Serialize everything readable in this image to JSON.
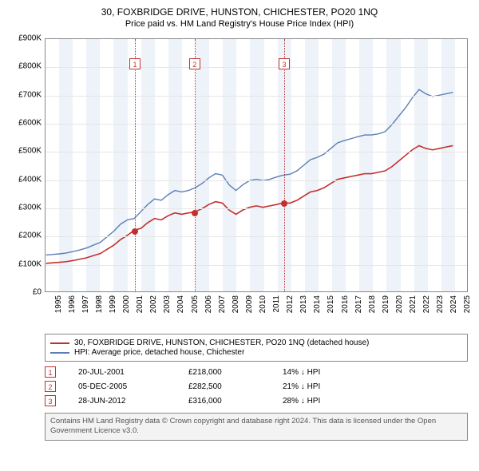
{
  "title": "30, FOXBRIDGE DRIVE, HUNSTON, CHICHESTER, PO20 1NQ",
  "subtitle": "Price paid vs. HM Land Registry's House Price Index (HPI)",
  "chart": {
    "type": "line",
    "x_start_year": 1995,
    "x_end_year": 2025,
    "xlim": [
      1995,
      2026
    ],
    "ylim": [
      0,
      900000
    ],
    "ytick_step": 100000,
    "y_tick_labels": [
      "£0",
      "£100K",
      "£200K",
      "£300K",
      "£400K",
      "£500K",
      "£600K",
      "£700K",
      "£800K",
      "£900K"
    ],
    "x_tick_labels": [
      "1995",
      "1996",
      "1997",
      "1998",
      "1999",
      "2000",
      "2001",
      "2002",
      "2003",
      "2004",
      "2005",
      "2006",
      "2007",
      "2008",
      "2009",
      "2010",
      "2011",
      "2012",
      "2013",
      "2014",
      "2015",
      "2016",
      "2017",
      "2018",
      "2019",
      "2020",
      "2021",
      "2022",
      "2023",
      "2024",
      "2025"
    ],
    "grid_color": "#e6e6e6",
    "axis_color": "#888888",
    "background_color": "#ffffff",
    "band_color": "#eef2f9",
    "series": [
      {
        "name": "property",
        "label": "30, FOXBRIDGE DRIVE, HUNSTON, CHICHESTER, PO20 1NQ (detached house)",
        "color": "#c2302e",
        "width": 1.6,
        "points": [
          [
            1995.0,
            100000
          ],
          [
            1995.5,
            102000
          ],
          [
            1996.0,
            104000
          ],
          [
            1996.5,
            106000
          ],
          [
            1997.0,
            110000
          ],
          [
            1997.5,
            115000
          ],
          [
            1998.0,
            120000
          ],
          [
            1998.5,
            128000
          ],
          [
            1999.0,
            135000
          ],
          [
            1999.5,
            150000
          ],
          [
            2000.0,
            165000
          ],
          [
            2000.5,
            185000
          ],
          [
            2001.0,
            200000
          ],
          [
            2001.5,
            218000
          ],
          [
            2002.0,
            225000
          ],
          [
            2002.5,
            245000
          ],
          [
            2003.0,
            260000
          ],
          [
            2003.5,
            255000
          ],
          [
            2004.0,
            270000
          ],
          [
            2004.5,
            280000
          ],
          [
            2005.0,
            275000
          ],
          [
            2005.5,
            280000
          ],
          [
            2005.9,
            282500
          ],
          [
            2006.5,
            295000
          ],
          [
            2007.0,
            310000
          ],
          [
            2007.5,
            320000
          ],
          [
            2008.0,
            315000
          ],
          [
            2008.5,
            290000
          ],
          [
            2009.0,
            275000
          ],
          [
            2009.5,
            290000
          ],
          [
            2010.0,
            300000
          ],
          [
            2010.5,
            305000
          ],
          [
            2011.0,
            300000
          ],
          [
            2011.5,
            305000
          ],
          [
            2012.0,
            310000
          ],
          [
            2012.5,
            316000
          ],
          [
            2013.0,
            315000
          ],
          [
            2013.5,
            325000
          ],
          [
            2014.0,
            340000
          ],
          [
            2014.5,
            355000
          ],
          [
            2015.0,
            360000
          ],
          [
            2015.5,
            370000
          ],
          [
            2016.0,
            385000
          ],
          [
            2016.5,
            400000
          ],
          [
            2017.0,
            405000
          ],
          [
            2017.5,
            410000
          ],
          [
            2018.0,
            415000
          ],
          [
            2018.5,
            420000
          ],
          [
            2019.0,
            420000
          ],
          [
            2019.5,
            425000
          ],
          [
            2020.0,
            430000
          ],
          [
            2020.5,
            445000
          ],
          [
            2021.0,
            465000
          ],
          [
            2021.5,
            485000
          ],
          [
            2022.0,
            505000
          ],
          [
            2022.5,
            520000
          ],
          [
            2023.0,
            510000
          ],
          [
            2023.5,
            505000
          ],
          [
            2024.0,
            510000
          ],
          [
            2024.5,
            515000
          ],
          [
            2025.0,
            520000
          ]
        ]
      },
      {
        "name": "hpi",
        "label": "HPI: Average price, detached house, Chichester",
        "color": "#5b7fb5",
        "width": 1.4,
        "points": [
          [
            1995.0,
            130000
          ],
          [
            1995.5,
            132000
          ],
          [
            1996.0,
            134000
          ],
          [
            1996.5,
            137000
          ],
          [
            1997.0,
            142000
          ],
          [
            1997.5,
            148000
          ],
          [
            1998.0,
            155000
          ],
          [
            1998.5,
            165000
          ],
          [
            1999.0,
            175000
          ],
          [
            1999.5,
            195000
          ],
          [
            2000.0,
            215000
          ],
          [
            2000.5,
            240000
          ],
          [
            2001.0,
            255000
          ],
          [
            2001.5,
            260000
          ],
          [
            2002.0,
            285000
          ],
          [
            2002.5,
            310000
          ],
          [
            2003.0,
            330000
          ],
          [
            2003.5,
            325000
          ],
          [
            2004.0,
            345000
          ],
          [
            2004.5,
            360000
          ],
          [
            2005.0,
            355000
          ],
          [
            2005.5,
            360000
          ],
          [
            2006.0,
            370000
          ],
          [
            2006.5,
            385000
          ],
          [
            2007.0,
            405000
          ],
          [
            2007.5,
            420000
          ],
          [
            2008.0,
            415000
          ],
          [
            2008.5,
            380000
          ],
          [
            2009.0,
            360000
          ],
          [
            2009.5,
            380000
          ],
          [
            2010.0,
            395000
          ],
          [
            2010.5,
            400000
          ],
          [
            2011.0,
            395000
          ],
          [
            2011.5,
            400000
          ],
          [
            2012.0,
            408000
          ],
          [
            2012.5,
            415000
          ],
          [
            2013.0,
            418000
          ],
          [
            2013.5,
            430000
          ],
          [
            2014.0,
            450000
          ],
          [
            2014.5,
            470000
          ],
          [
            2015.0,
            478000
          ],
          [
            2015.5,
            490000
          ],
          [
            2016.0,
            510000
          ],
          [
            2016.5,
            530000
          ],
          [
            2017.0,
            538000
          ],
          [
            2017.5,
            545000
          ],
          [
            2018.0,
            552000
          ],
          [
            2018.5,
            558000
          ],
          [
            2019.0,
            558000
          ],
          [
            2019.5,
            562000
          ],
          [
            2020.0,
            570000
          ],
          [
            2020.5,
            595000
          ],
          [
            2021.0,
            625000
          ],
          [
            2021.5,
            655000
          ],
          [
            2022.0,
            690000
          ],
          [
            2022.5,
            720000
          ],
          [
            2023.0,
            705000
          ],
          [
            2023.5,
            695000
          ],
          [
            2024.0,
            700000
          ],
          [
            2024.5,
            705000
          ],
          [
            2025.0,
            710000
          ]
        ]
      }
    ],
    "markers": [
      {
        "id": "1",
        "x": 2001.55,
        "y": 218000
      },
      {
        "id": "2",
        "x": 2005.93,
        "y": 282500
      },
      {
        "id": "3",
        "x": 2012.49,
        "y": 316000
      }
    ],
    "marker_color": "#c2302e",
    "label_fontsize": 10,
    "title_fontsize": 12
  },
  "legend": {
    "items": [
      {
        "color": "#c2302e",
        "label": "30, FOXBRIDGE DRIVE, HUNSTON, CHICHESTER, PO20 1NQ (detached house)"
      },
      {
        "color": "#5b7fb5",
        "label": "HPI: Average price, detached house, Chichester"
      }
    ]
  },
  "sales": [
    {
      "id": "1",
      "date": "20-JUL-2001",
      "price": "£218,000",
      "delta": "14% ↓ HPI"
    },
    {
      "id": "2",
      "date": "05-DEC-2005",
      "price": "£282,500",
      "delta": "21% ↓ HPI"
    },
    {
      "id": "3",
      "date": "28-JUN-2012",
      "price": "£316,000",
      "delta": "28% ↓ HPI"
    }
  ],
  "footer": "Contains HM Land Registry data © Crown copyright and database right 2024. This data is licensed under the Open Government Licence v3.0."
}
